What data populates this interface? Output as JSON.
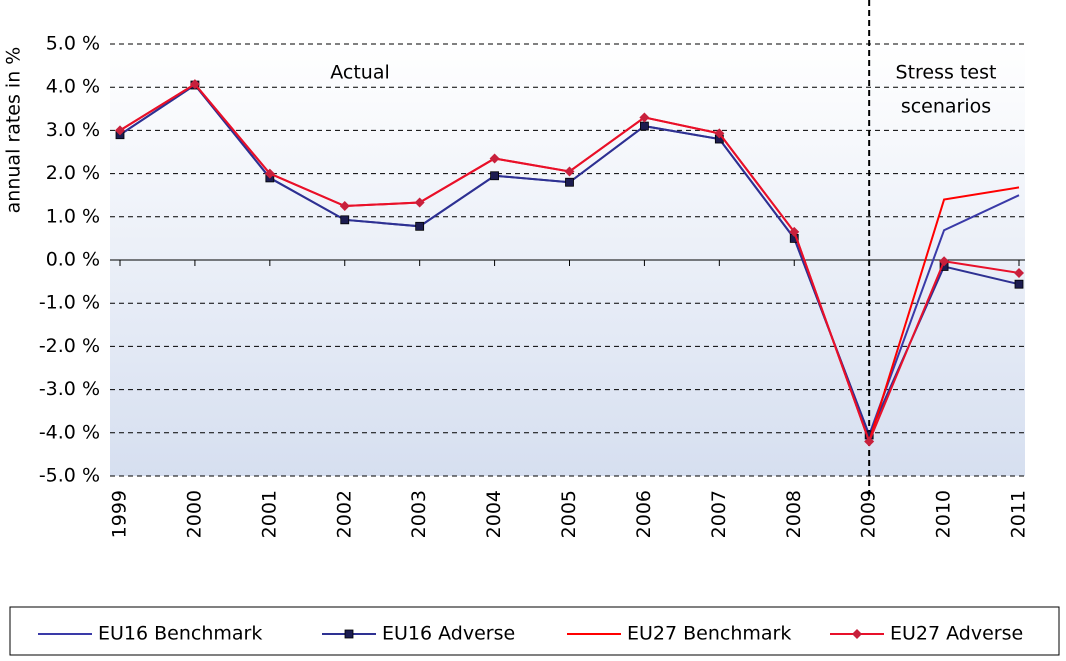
{
  "chart_data": {
    "type": "line",
    "y_axis_label": "annual rates in %",
    "annotations": [
      "Actual",
      "Stress test",
      "scenarios"
    ],
    "divider": "2009",
    "categories": [
      "1999",
      "2000",
      "2001",
      "2002",
      "2003",
      "2004",
      "2005",
      "2006",
      "2007",
      "2008",
      "2009",
      "2010",
      "2011"
    ],
    "series": [
      {
        "name": "EU16 Benchmark",
        "color": "#3a3aa8",
        "marker": null,
        "values": [
          2.9,
          4.05,
          1.9,
          0.93,
          0.78,
          1.95,
          1.8,
          3.1,
          2.8,
          0.5,
          -4.05,
          0.69,
          1.5
        ]
      },
      {
        "name": "EU16 Adverse",
        "color": "#2e3192",
        "marker": "square",
        "marker_color": "#1c1c50",
        "values": [
          2.9,
          4.05,
          1.9,
          0.93,
          0.78,
          1.95,
          1.8,
          3.1,
          2.8,
          0.5,
          -4.05,
          -0.15,
          -0.56
        ]
      },
      {
        "name": "EU27 Benchmark",
        "color": "#ff0000",
        "marker": null,
        "values": [
          3.0,
          4.07,
          2.0,
          1.25,
          1.33,
          2.35,
          2.05,
          3.3,
          2.93,
          0.65,
          -4.2,
          1.4,
          1.68
        ]
      },
      {
        "name": "EU27 Adverse",
        "color": "#e8102a",
        "marker": "diamond",
        "marker_color": "#c8203c",
        "values": [
          3.0,
          4.07,
          2.0,
          1.25,
          1.33,
          2.35,
          2.05,
          3.3,
          2.93,
          0.65,
          -4.2,
          -0.03,
          -0.3
        ]
      }
    ],
    "ylim": [
      -5,
      5
    ],
    "yticks": [
      {
        "value": -5,
        "label": "-5.0 %"
      },
      {
        "value": -4,
        "label": "-4.0 %"
      },
      {
        "value": -3,
        "label": "-3.0 %"
      },
      {
        "value": -2,
        "label": "-2.0 %"
      },
      {
        "value": -1,
        "label": "-1.0 %"
      },
      {
        "value": 0,
        "label": "0.0 %"
      },
      {
        "value": 1,
        "label": "1.0 %"
      },
      {
        "value": 2,
        "label": "2.0 %"
      },
      {
        "value": 3,
        "label": "3.0 %"
      },
      {
        "value": 4,
        "label": "4.0 %"
      },
      {
        "value": 5,
        "label": "5.0 %"
      }
    ],
    "grid": true,
    "legend": "bottom"
  }
}
